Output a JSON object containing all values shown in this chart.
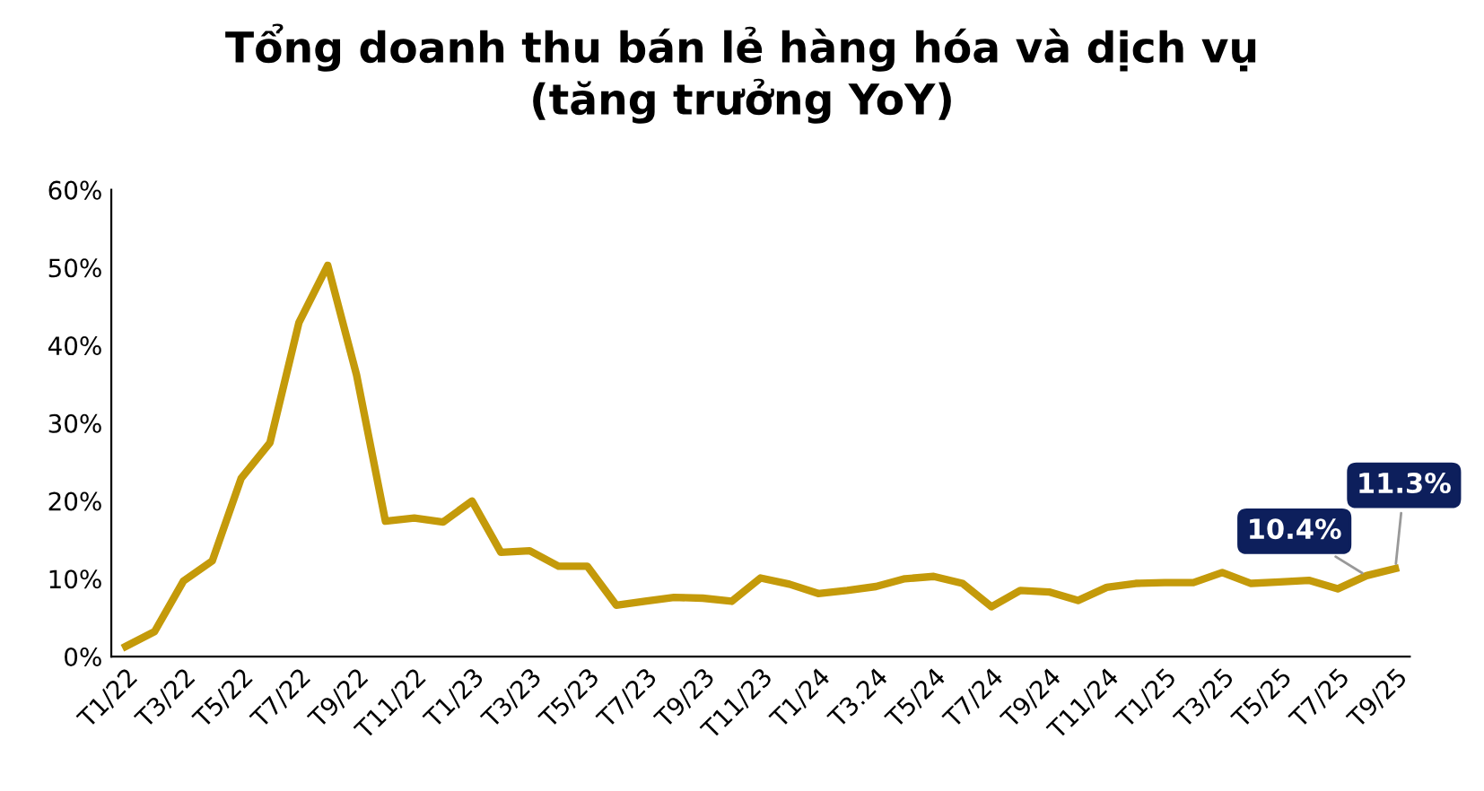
{
  "chart_data": {
    "type": "line",
    "title": "Tổng doanh thu bán lẻ hàng hóa và dịch vụ\n(tăng trưởng YoY)",
    "categories": [
      "T1/22",
      null,
      "T3/22",
      null,
      "T5/22",
      null,
      "T7/22",
      null,
      "T9/22",
      null,
      "T11/22",
      null,
      "T1/23",
      null,
      "T3/23",
      null,
      "T5/23",
      null,
      "T7/23",
      null,
      "T9/23",
      null,
      "T11/23",
      null,
      "T1/24",
      null,
      "T3.24",
      null,
      "T5/24",
      null,
      "T7/24",
      null,
      "T9/24",
      null,
      "T11/24",
      null,
      "T1/25",
      null,
      "T3/25",
      null,
      "T5/25",
      null,
      "T7/25",
      null,
      "T9/25"
    ],
    "series": [
      {
        "color": "#c49a0a",
        "values": [
          1.3,
          3.2,
          9.7,
          12.3,
          22.9,
          27.5,
          42.9,
          50.3,
          36.2,
          17.4,
          17.8,
          17.3,
          20.0,
          13.4,
          13.6,
          11.6,
          11.6,
          6.6,
          7.1,
          7.6,
          7.5,
          7.1,
          10.1,
          9.3,
          8.1,
          8.5,
          9.0,
          10.0,
          10.3,
          9.4,
          6.4,
          8.5,
          8.3,
          7.2,
          8.9,
          9.4,
          9.5,
          9.5,
          10.8,
          9.4,
          9.6,
          9.8,
          8.7,
          10.4,
          11.3
        ],
        "value_labels": [
          null,
          null,
          null,
          null,
          null,
          null,
          null,
          null,
          null,
          null,
          null,
          null,
          null,
          null,
          null,
          null,
          null,
          null,
          null,
          null,
          null,
          null,
          null,
          null,
          null,
          null,
          null,
          null,
          null,
          null,
          null,
          null,
          null,
          null,
          null,
          null,
          null,
          null,
          null,
          null,
          null,
          null,
          null,
          "10.4%",
          "11.3%"
        ]
      }
    ],
    "ylim": [
      0,
      60
    ],
    "yticks": [
      {
        "value": 0,
        "label": "0%"
      },
      {
        "value": 10,
        "label": "10%"
      },
      {
        "value": 20,
        "label": "20%"
      },
      {
        "value": 30,
        "label": "30%"
      },
      {
        "value": 40,
        "label": "40%"
      },
      {
        "value": 50,
        "label": "50%"
      },
      {
        "value": 60,
        "label": "60%"
      }
    ],
    "grid": false,
    "legend": false,
    "marker": "none",
    "line_style": "solid"
  }
}
